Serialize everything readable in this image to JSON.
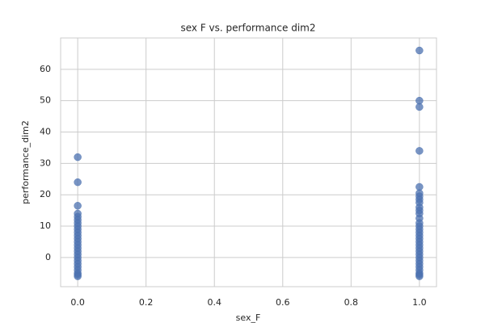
{
  "chart_data": {
    "type": "scatter",
    "title": "sex F vs. performance dim2",
    "x_label": "sex_F",
    "y_label": "performance_dim2",
    "x": [
      0,
      0,
      0,
      0,
      0,
      0,
      0,
      0,
      0,
      0,
      0,
      0,
      0,
      0,
      0,
      0,
      0,
      0,
      0,
      0,
      0,
      0,
      0,
      0,
      0,
      1,
      1,
      1,
      1,
      1,
      1,
      1,
      1,
      1,
      1,
      1,
      1,
      1,
      1,
      1,
      1,
      1,
      1,
      1,
      1,
      1,
      1,
      1,
      1,
      1,
      1,
      1,
      1,
      1,
      1,
      1,
      1
    ],
    "values": [
      32,
      24,
      16.5,
      14,
      13,
      12,
      11,
      10,
      9,
      8,
      7,
      6,
      5,
      4,
      3,
      2,
      1,
      0,
      -1,
      -2,
      -3,
      -4,
      -5,
      -5.5,
      -6,
      66,
      50,
      48,
      34,
      22.5,
      20.5,
      19.5,
      18.5,
      17.5,
      16,
      15,
      14,
      12.5,
      11,
      10,
      9,
      8,
      7,
      6,
      5,
      4,
      3,
      2,
      1,
      0,
      -1,
      -2,
      -3,
      -4,
      -5,
      -5.5,
      -6
    ],
    "color": "#4c72b0",
    "xlim": [
      -0.05,
      1.05
    ],
    "ylim": [
      -9.3,
      70
    ],
    "xticks": [
      {
        "value": 0,
        "label": "0.0"
      },
      {
        "value": 0.2,
        "label": "0.2"
      },
      {
        "value": 0.4,
        "label": "0.4"
      },
      {
        "value": 0.6,
        "label": "0.6"
      },
      {
        "value": 0.8,
        "label": "0.8"
      },
      {
        "value": 1,
        "label": "1.0"
      }
    ],
    "yticks": [
      0,
      10,
      20,
      30,
      40,
      50,
      60
    ],
    "grid": true
  }
}
